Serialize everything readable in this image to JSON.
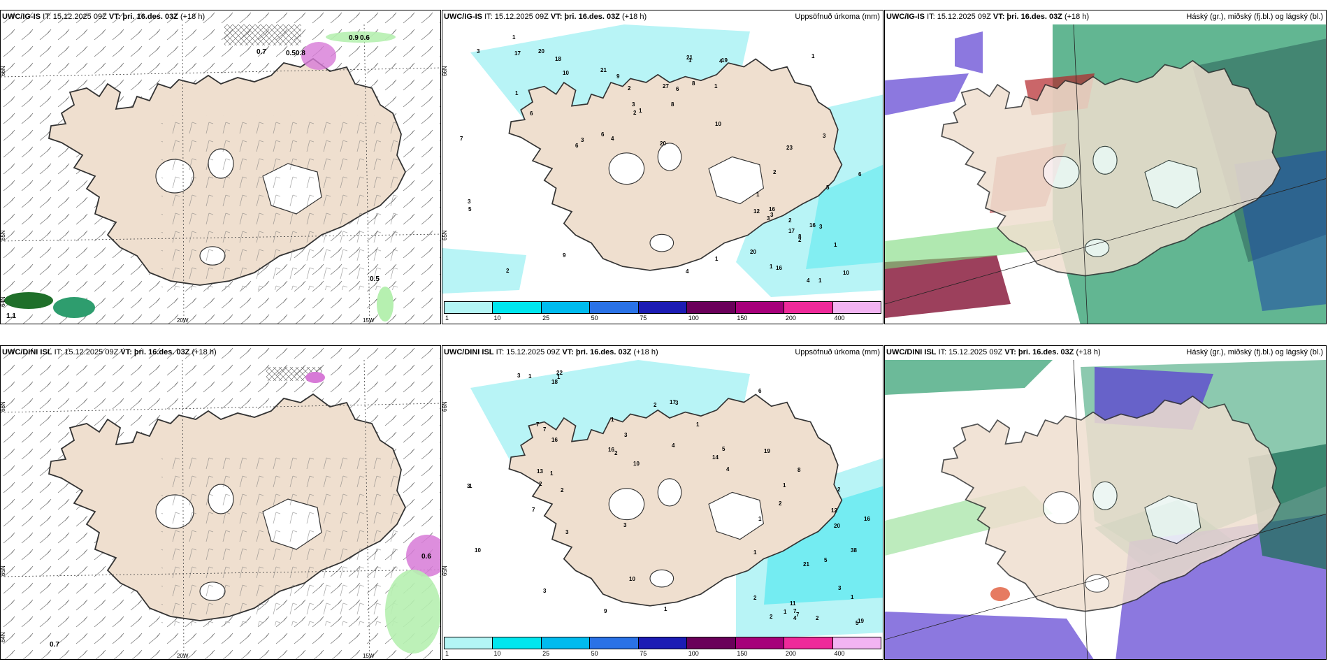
{
  "panels": [
    {
      "id": "wind-ig",
      "model": "UWC/IG-IS",
      "it": "IT: 15.12.2025 09Z",
      "vt_label": "VT:",
      "vt_value": "þri. 16.des. 03Z",
      "lead": "(+18 h)",
      "title_right": "",
      "axis_labels": [
        "66N",
        "65N",
        "64N",
        "20W",
        "15W"
      ],
      "values": [
        "0.7",
        "0.50.8",
        "0.9",
        "0.6",
        "0.5",
        "1.1"
      ]
    },
    {
      "id": "precip-ig",
      "model": "UWC/IG-IS",
      "it": "IT: 15.12.2025 09Z",
      "vt_label": "VT:",
      "vt_value": "þri. 16.des. 03Z",
      "lead": "(+18 h)",
      "title_right": "Uppsöfnuð úrkoma (mm)",
      "axis_labels": [
        "66N",
        "65N"
      ],
      "numbers": [
        "1",
        "1",
        "1",
        "2",
        "2",
        "4",
        "6",
        "3",
        "3",
        "9",
        "1",
        "7",
        "6",
        "8",
        "3",
        "10",
        "5",
        "5",
        "6",
        "2",
        "3",
        "3",
        "2",
        "2",
        "1",
        "3",
        "1",
        "1",
        "3",
        "1",
        "1",
        "17",
        "21",
        "17",
        "16",
        "20",
        "20",
        "20",
        "16",
        "18",
        "16",
        "27",
        "19",
        "23",
        "4",
        "10",
        "10",
        "4",
        "6",
        "6",
        "8",
        "21",
        "12",
        "3",
        "8",
        "4",
        "9",
        "2",
        "1",
        "1"
      ]
    },
    {
      "id": "cloud-ig",
      "model": "UWC/IG-IS",
      "it": "IT: 15.12.2025 09Z",
      "vt_label": "VT:",
      "vt_value": "þri. 16.des. 03Z",
      "lead": "(+18 h)",
      "title_right": "Háský (gr.), miðský (fj.bl.) og lágský (bl.)"
    },
    {
      "id": "wind-dini",
      "model": "UWC/DINI ISL",
      "it": "IT: 15.12.2025 09Z",
      "vt_label": "VT:",
      "vt_value": "þri. 16.des. 03Z",
      "lead": "(+18 h)",
      "title_right": "",
      "axis_labels": [
        "66N",
        "65N",
        "64N",
        "20W",
        "15W"
      ],
      "values": [
        "0.7",
        "0.6"
      ]
    },
    {
      "id": "precip-dini",
      "model": "UWC/DINI ISL",
      "it": "IT: 15.12.2025 09Z",
      "vt_label": "VT:",
      "vt_value": "þri. 16.des. 03Z",
      "lead": "(+18 h)",
      "title_right": "Uppsöfnuð úrkoma (mm)",
      "axis_labels": [
        "66N",
        "65N"
      ],
      "numbers": [
        "1",
        "2",
        "2",
        "3",
        "1",
        "3",
        "4",
        "2",
        "3",
        "7",
        "8",
        "6",
        "7",
        "5",
        "1",
        "4",
        "1",
        "1",
        "3",
        "2",
        "7",
        "2",
        "5",
        "2",
        "2",
        "3",
        "3",
        "1",
        "1",
        "1",
        "1",
        "1",
        "2",
        "1",
        "7",
        "9",
        "10",
        "21",
        "19",
        "16",
        "38",
        "20",
        "22",
        "19",
        "16",
        "18",
        "16",
        "12",
        "17",
        "11",
        "10",
        "13",
        "4",
        "3",
        "3",
        "7",
        "10",
        "14",
        "2",
        "1",
        "5"
      ]
    },
    {
      "id": "cloud-dini",
      "model": "UWC/DINI ISL",
      "it": "IT: 15.12.2025 09Z",
      "vt_label": "VT:",
      "vt_value": "þri. 16.des. 03Z",
      "lead": "(+18 h)",
      "title_right": "Háský (gr.), miðský (fj.bl.) og lágský (bl.)"
    }
  ],
  "legend": {
    "ticks": [
      "1",
      "10",
      "25",
      "50",
      "75",
      "100",
      "150",
      "200",
      "400"
    ],
    "colors": [
      "#b3f5f5",
      "#00e6ee",
      "#00bbee",
      "#2a72e6",
      "#1c1cb4",
      "#6a005a",
      "#a6007a",
      "#ee2a9a",
      "#f2b4f2"
    ]
  },
  "colors": {
    "land": "#efdfcf",
    "precip": "#b8f4f6",
    "precip_mid": "#5de9f0",
    "high": "#2e9d6e",
    "mid": "#1f4fa3",
    "low": "#5b3fd1",
    "red": "#b3252a",
    "green": "#7bd87b"
  }
}
